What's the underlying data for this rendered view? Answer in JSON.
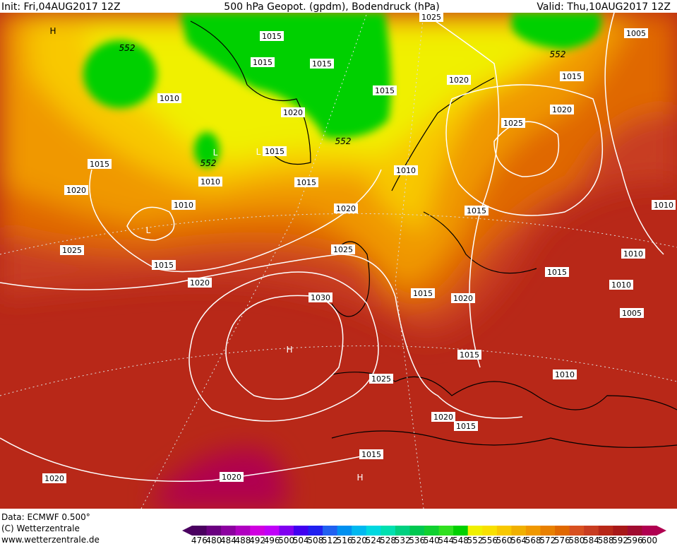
{
  "header": {
    "init": "Init: Fri,04AUG2017 12Z",
    "title": "500 hPa Geopot. (gpdm), Bodendruck (hPa)",
    "valid": "Valid: Thu,10AUG2017 12Z"
  },
  "pressure_labels": [
    "1025",
    "1005",
    "1015",
    "1015",
    "1015",
    "1015",
    "1020",
    "1015",
    "1010",
    "1020",
    "1020",
    "1025",
    "1015",
    "1015",
    "1010",
    "1010",
    "1015",
    "1020",
    "1010",
    "1020",
    "1015",
    "1010",
    "1025",
    "1025",
    "1010",
    "1015",
    "1015",
    "1020",
    "1010",
    "1015",
    "1020",
    "1030",
    "1005",
    "1015",
    "1010",
    "1025",
    "1020",
    "1015",
    "1015",
    "1020",
    "1020"
  ],
  "height_labels": [
    "552",
    "552",
    "552",
    "552"
  ],
  "centers": [
    "H",
    "H",
    "H",
    "L",
    "L",
    "L"
  ],
  "footer": [
    "Data: ECMWF   0.500°",
    "(C) Wetterzentrale",
    "www.wetterzentrale.de"
  ],
  "colorbar": {
    "ticks": [
      476,
      480,
      484,
      488,
      492,
      496,
      500,
      504,
      508,
      512,
      516,
      520,
      524,
      528,
      532,
      536,
      540,
      544,
      548,
      552,
      556,
      560,
      564,
      568,
      572,
      576,
      580,
      584,
      588,
      592,
      596,
      600
    ],
    "colors": [
      "#4a0060",
      "#6a0080",
      "#8c00a0",
      "#b000c0",
      "#d000e0",
      "#c000f8",
      "#8000f0",
      "#4000f0",
      "#2020f0",
      "#2060f0",
      "#0090f0",
      "#00b8f0",
      "#00d8e0",
      "#00e0b0",
      "#00d080",
      "#00c850",
      "#10d030",
      "#30e020",
      "#00d000",
      "#f0f000",
      "#f8e000",
      "#f8c800",
      "#f0b000",
      "#f09800",
      "#e88000",
      "#e06800",
      "#d85020",
      "#c83c20",
      "#b82818",
      "#a81818",
      "#a00c30",
      "#b00050"
    ]
  }
}
